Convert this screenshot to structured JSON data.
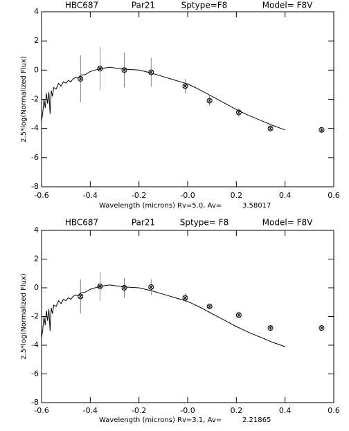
{
  "chart_data": [
    {
      "type": "scatter",
      "title_parts": [
        "HBC687",
        "Par21",
        "Sptype=F8",
        "Model= F8V"
      ],
      "xlabel": "Wavelength (microns) Rv=5.0, Av=",
      "xlabel_value": "3.58017",
      "ylabel": "2.5*log(Normalized Flux)",
      "xlim": [
        -0.6,
        0.6
      ],
      "ylim": [
        -8,
        4
      ],
      "xticks": [
        -0.6,
        -0.4,
        -0.2,
        {
          "value": 0,
          "label": "-0.0"
        },
        0.2,
        0.4,
        0.6
      ],
      "yticks": [
        -8,
        -6,
        -4,
        -2,
        0,
        2,
        4
      ],
      "model": {
        "x": [
          -0.6,
          -0.595,
          -0.59,
          -0.585,
          -0.58,
          -0.575,
          -0.57,
          -0.565,
          -0.56,
          -0.555,
          -0.55,
          -0.54,
          -0.53,
          -0.52,
          -0.51,
          -0.5,
          -0.49,
          -0.48,
          -0.47,
          -0.46,
          -0.45,
          -0.44,
          -0.42,
          -0.4,
          -0.38,
          -0.36,
          -0.34,
          -0.32,
          -0.3,
          -0.25,
          -0.2,
          -0.15,
          -0.1,
          -0.05,
          0,
          0.05,
          0.1,
          0.15,
          0.2,
          0.25,
          0.3,
          0.35,
          0.4
        ],
        "values": [
          -3.5,
          -2.9,
          -2.0,
          -2.6,
          -1.6,
          -2.3,
          -1.5,
          -3.0,
          -1.4,
          -1.8,
          -1.2,
          -1.3,
          -0.9,
          -1.1,
          -0.8,
          -0.9,
          -0.7,
          -0.8,
          -0.6,
          -0.5,
          -0.55,
          -0.35,
          -0.3,
          -0.1,
          0.0,
          0.1,
          0.15,
          0.2,
          0.15,
          0.05,
          0.0,
          -0.2,
          -0.45,
          -0.7,
          -0.95,
          -1.35,
          -1.8,
          -2.25,
          -2.7,
          -3.1,
          -3.45,
          -3.8,
          -4.1
        ]
      },
      "points": {
        "x": [
          -0.44,
          -0.36,
          -0.26,
          -0.15,
          -0.01,
          0.09,
          0.21,
          0.34,
          0.55
        ],
        "values": [
          -0.6,
          0.1,
          0.0,
          -0.15,
          -1.1,
          -2.1,
          -2.9,
          -4.0,
          -4.1
        ],
        "errors": [
          1.6,
          1.5,
          1.2,
          1.0,
          0.5,
          0.35,
          0.3,
          0.2,
          0.15
        ]
      }
    },
    {
      "type": "scatter",
      "title_parts": [
        "HBC687",
        "Par21",
        "Sptype= F8",
        "Model= F8V"
      ],
      "xlabel": "Wavelength (microns) Rv=3.1,  Av=",
      "xlabel_value": "2.21865",
      "ylabel": "2.5*log(Normalized Flux)",
      "xlim": [
        -0.6,
        0.6
      ],
      "ylim": [
        -8,
        4
      ],
      "xticks": [
        -0.6,
        -0.4,
        -0.2,
        {
          "value": 0,
          "label": "-0.0"
        },
        0.2,
        0.4,
        0.6
      ],
      "yticks": [
        -8,
        -6,
        -4,
        -2,
        0,
        2,
        4
      ],
      "model": {
        "x": [
          -0.6,
          -0.595,
          -0.59,
          -0.585,
          -0.58,
          -0.575,
          -0.57,
          -0.565,
          -0.56,
          -0.555,
          -0.55,
          -0.54,
          -0.53,
          -0.52,
          -0.51,
          -0.5,
          -0.49,
          -0.48,
          -0.47,
          -0.46,
          -0.45,
          -0.44,
          -0.42,
          -0.4,
          -0.38,
          -0.36,
          -0.34,
          -0.32,
          -0.3,
          -0.25,
          -0.2,
          -0.15,
          -0.1,
          -0.05,
          0,
          0.05,
          0.1,
          0.15,
          0.2,
          0.25,
          0.3,
          0.35,
          0.4
        ],
        "values": [
          -3.5,
          -2.9,
          -2.0,
          -2.6,
          -1.6,
          -2.3,
          -1.5,
          -3.0,
          -1.4,
          -1.8,
          -1.2,
          -1.3,
          -0.9,
          -1.1,
          -0.8,
          -0.9,
          -0.7,
          -0.8,
          -0.6,
          -0.5,
          -0.55,
          -0.35,
          -0.3,
          -0.1,
          0.0,
          0.1,
          0.15,
          0.2,
          0.15,
          0.05,
          0.0,
          -0.2,
          -0.45,
          -0.7,
          -0.95,
          -1.35,
          -1.8,
          -2.25,
          -2.7,
          -3.1,
          -3.45,
          -3.8,
          -4.1
        ]
      },
      "points": {
        "x": [
          -0.44,
          -0.36,
          -0.26,
          -0.15,
          -0.01,
          0.09,
          0.21,
          0.34,
          0.55
        ],
        "values": [
          -0.6,
          0.1,
          0.0,
          0.05,
          -0.7,
          -1.3,
          -1.9,
          -2.8,
          -2.8
        ],
        "errors": [
          1.2,
          1.0,
          0.7,
          0.55,
          0.3,
          0.2,
          0.2,
          0.15,
          0.1
        ]
      }
    }
  ]
}
